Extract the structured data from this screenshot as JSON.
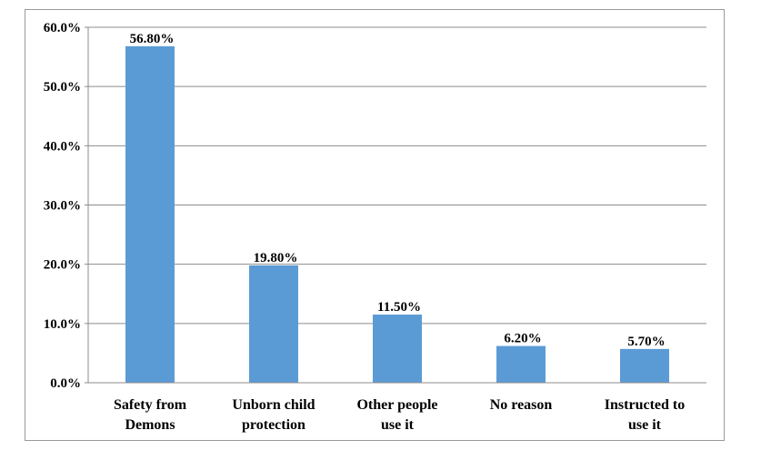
{
  "chart_data": {
    "type": "bar",
    "categories": [
      [
        "Safety from",
        "Demons"
      ],
      [
        "Unborn child",
        "protection"
      ],
      [
        "Other people",
        "use it"
      ],
      [
        "No reason"
      ],
      [
        "Instructed to",
        "use it"
      ]
    ],
    "values": [
      56.8,
      19.8,
      11.5,
      6.2,
      5.7
    ],
    "data_labels": [
      "56.80%",
      "19.80%",
      "11.50%",
      "6.20%",
      "5.70%"
    ],
    "y_ticks": [
      "0.0%",
      "10.0%",
      "20.0%",
      "30.0%",
      "40.0%",
      "50.0%",
      "60.0%"
    ],
    "ylim": [
      0,
      60
    ],
    "grid": true,
    "bar_color": "#5b9bd5",
    "grid_color": "#8c8c8c"
  }
}
